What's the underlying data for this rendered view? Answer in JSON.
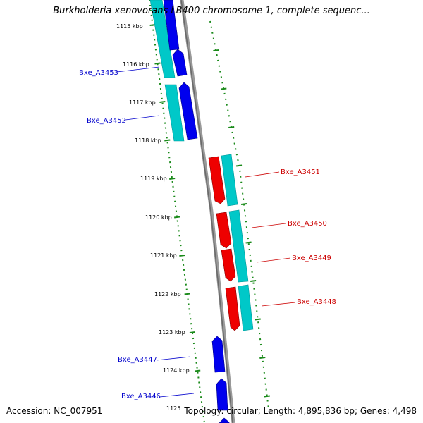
{
  "title": "Burkholderia xenovorans LB400 chromosome 1, complete sequenc...",
  "footer": {
    "accession": "Accession: NC_007951",
    "summary": "Topology: circular; Length: 4,895,836 bp; Genes: 4,498"
  },
  "colors": {
    "forward_gene": "#0000ee",
    "reverse_gene": "#ee0000",
    "cds": "#00c8c8",
    "backbone": "#888888",
    "ruler": "#1a8a1a",
    "tick_label": "#000000"
  },
  "ruler_labels": [
    "1115 kbp",
    "1116 kbp",
    "1117 kbp",
    "1118 kbp",
    "1119 kbp",
    "1120 kbp",
    "1121 kbp",
    "1122 kbp",
    "1123 kbp",
    "1124 kbp",
    "1125"
  ],
  "genes": [
    {
      "name": "Bxe_A3453",
      "strand": "forward"
    },
    {
      "name": "Bxe_A3452",
      "strand": "forward"
    },
    {
      "name": "Bxe_A3451",
      "strand": "reverse"
    },
    {
      "name": "Bxe_A3450",
      "strand": "reverse"
    },
    {
      "name": "Bxe_A3449",
      "strand": "reverse"
    },
    {
      "name": "Bxe_A3448",
      "strand": "reverse"
    },
    {
      "name": "Bxe_A3447",
      "strand": "forward"
    },
    {
      "name": "Bxe_A3446",
      "strand": "forward"
    }
  ]
}
